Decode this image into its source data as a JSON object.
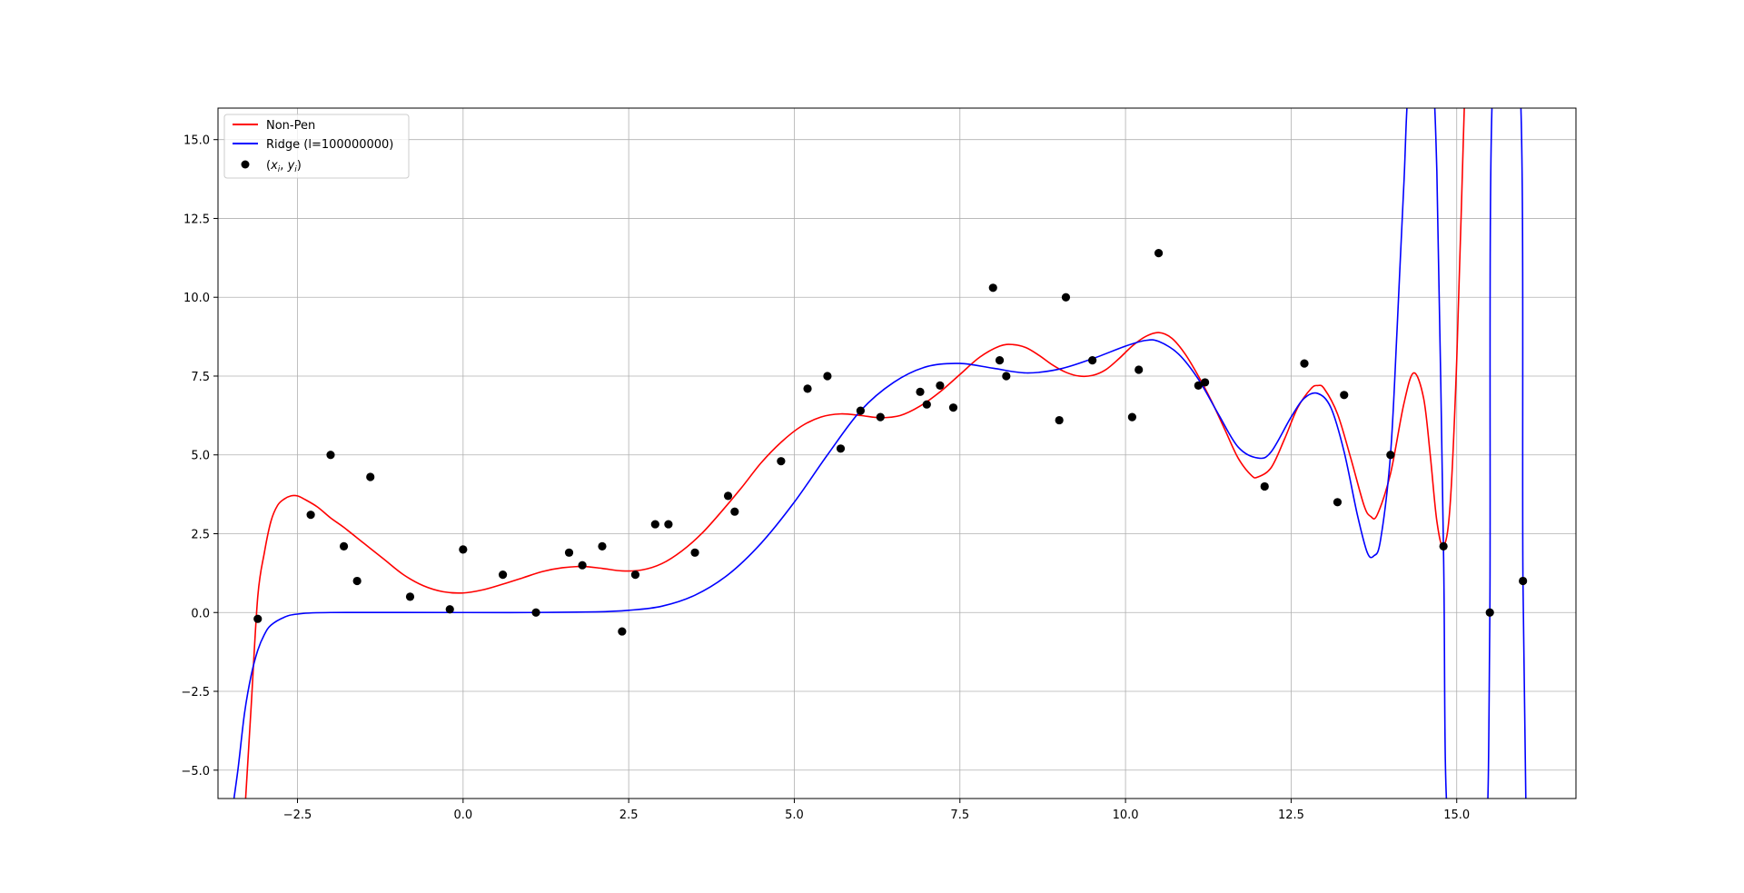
{
  "chart_data": {
    "type": "line",
    "title": "",
    "xlabel": "",
    "ylabel": "",
    "xlim": [
      -3.7,
      16.8
    ],
    "ylim": [
      -5.9,
      16.0
    ],
    "grid": true,
    "legend_position": "upper-left",
    "x_ticks": [
      {
        "value": -2.5,
        "label": "−2.5"
      },
      {
        "value": 0.0,
        "label": "0.0"
      },
      {
        "value": 2.5,
        "label": "2.5"
      },
      {
        "value": 5.0,
        "label": "5.0"
      },
      {
        "value": 7.5,
        "label": "7.5"
      },
      {
        "value": 10.0,
        "label": "10.0"
      },
      {
        "value": 12.5,
        "label": "12.5"
      },
      {
        "value": 15.0,
        "label": "15.0"
      }
    ],
    "y_ticks": [
      {
        "value": -5.0,
        "label": "−5.0"
      },
      {
        "value": -2.5,
        "label": "−2.5"
      },
      {
        "value": 0.0,
        "label": "0.0"
      },
      {
        "value": 2.5,
        "label": "2.5"
      },
      {
        "value": 5.0,
        "label": "5.0"
      },
      {
        "value": 7.5,
        "label": "7.5"
      },
      {
        "value": 10.0,
        "label": "10.0"
      },
      {
        "value": 12.5,
        "label": "12.5"
      },
      {
        "value": 15.0,
        "label": "15.0"
      }
    ],
    "series": [
      {
        "name": "Non-Pen",
        "color": "#ff0000",
        "kind": "line",
        "points": [
          [
            -3.3,
            -6.5
          ],
          [
            -3.2,
            -3.0
          ],
          [
            -3.1,
            0.5
          ],
          [
            -3.0,
            1.9
          ],
          [
            -2.9,
            2.9
          ],
          [
            -2.8,
            3.4
          ],
          [
            -2.7,
            3.6
          ],
          [
            -2.6,
            3.7
          ],
          [
            -2.5,
            3.7
          ],
          [
            -2.4,
            3.6
          ],
          [
            -2.2,
            3.35
          ],
          [
            -2.0,
            3.0
          ],
          [
            -1.8,
            2.7
          ],
          [
            -1.5,
            2.2
          ],
          [
            -1.2,
            1.7
          ],
          [
            -0.9,
            1.2
          ],
          [
            -0.6,
            0.85
          ],
          [
            -0.3,
            0.66
          ],
          [
            0.0,
            0.62
          ],
          [
            0.3,
            0.72
          ],
          [
            0.6,
            0.9
          ],
          [
            0.9,
            1.1
          ],
          [
            1.2,
            1.3
          ],
          [
            1.5,
            1.42
          ],
          [
            1.8,
            1.46
          ],
          [
            2.1,
            1.4
          ],
          [
            2.4,
            1.32
          ],
          [
            2.7,
            1.35
          ],
          [
            3.0,
            1.55
          ],
          [
            3.3,
            1.95
          ],
          [
            3.6,
            2.5
          ],
          [
            3.9,
            3.2
          ],
          [
            4.2,
            3.95
          ],
          [
            4.5,
            4.75
          ],
          [
            4.8,
            5.4
          ],
          [
            5.1,
            5.9
          ],
          [
            5.4,
            6.2
          ],
          [
            5.7,
            6.3
          ],
          [
            6.0,
            6.25
          ],
          [
            6.3,
            6.18
          ],
          [
            6.6,
            6.25
          ],
          [
            6.9,
            6.55
          ],
          [
            7.2,
            7.0
          ],
          [
            7.5,
            7.55
          ],
          [
            7.8,
            8.1
          ],
          [
            8.1,
            8.45
          ],
          [
            8.3,
            8.5
          ],
          [
            8.5,
            8.4
          ],
          [
            8.7,
            8.15
          ],
          [
            8.9,
            7.85
          ],
          [
            9.1,
            7.62
          ],
          [
            9.3,
            7.5
          ],
          [
            9.5,
            7.52
          ],
          [
            9.7,
            7.7
          ],
          [
            9.9,
            8.05
          ],
          [
            10.1,
            8.45
          ],
          [
            10.3,
            8.75
          ],
          [
            10.5,
            8.88
          ],
          [
            10.7,
            8.7
          ],
          [
            10.9,
            8.2
          ],
          [
            11.1,
            7.5
          ],
          [
            11.3,
            6.7
          ],
          [
            11.5,
            5.8
          ],
          [
            11.7,
            4.9
          ],
          [
            11.9,
            4.35
          ],
          [
            12.0,
            4.3
          ],
          [
            12.2,
            4.6
          ],
          [
            12.4,
            5.5
          ],
          [
            12.6,
            6.5
          ],
          [
            12.8,
            7.1
          ],
          [
            12.9,
            7.2
          ],
          [
            13.0,
            7.1
          ],
          [
            13.2,
            6.3
          ],
          [
            13.4,
            4.9
          ],
          [
            13.6,
            3.4
          ],
          [
            13.7,
            3.05
          ],
          [
            13.8,
            3.1
          ],
          [
            14.0,
            4.4
          ],
          [
            14.2,
            6.6
          ],
          [
            14.35,
            7.6
          ],
          [
            14.5,
            6.8
          ],
          [
            14.6,
            5.0
          ],
          [
            14.7,
            2.9
          ],
          [
            14.8,
            2.1
          ],
          [
            14.9,
            3.4
          ],
          [
            15.0,
            8.0
          ],
          [
            15.1,
            15.0
          ],
          [
            15.2,
            22.0
          ]
        ]
      },
      {
        "name": "Ridge (l=100000000)",
        "color": "#0000ff",
        "kind": "line",
        "points": [
          [
            -3.5,
            -6.5
          ],
          [
            -3.4,
            -5.0
          ],
          [
            -3.3,
            -3.2
          ],
          [
            -3.2,
            -2.0
          ],
          [
            -3.1,
            -1.2
          ],
          [
            -3.0,
            -0.7
          ],
          [
            -2.9,
            -0.4
          ],
          [
            -2.7,
            -0.15
          ],
          [
            -2.5,
            -0.05
          ],
          [
            -2.0,
            0.0
          ],
          [
            0.0,
            0.0
          ],
          [
            1.0,
            0.0
          ],
          [
            2.0,
            0.02
          ],
          [
            2.5,
            0.07
          ],
          [
            3.0,
            0.2
          ],
          [
            3.5,
            0.55
          ],
          [
            4.0,
            1.2
          ],
          [
            4.5,
            2.2
          ],
          [
            5.0,
            3.5
          ],
          [
            5.5,
            5.0
          ],
          [
            6.0,
            6.4
          ],
          [
            6.5,
            7.3
          ],
          [
            7.0,
            7.8
          ],
          [
            7.5,
            7.9
          ],
          [
            8.0,
            7.75
          ],
          [
            8.5,
            7.6
          ],
          [
            9.0,
            7.72
          ],
          [
            9.5,
            8.05
          ],
          [
            10.0,
            8.45
          ],
          [
            10.3,
            8.63
          ],
          [
            10.5,
            8.6
          ],
          [
            10.8,
            8.2
          ],
          [
            11.1,
            7.4
          ],
          [
            11.4,
            6.3
          ],
          [
            11.7,
            5.25
          ],
          [
            12.0,
            4.9
          ],
          [
            12.2,
            5.1
          ],
          [
            12.5,
            6.2
          ],
          [
            12.7,
            6.8
          ],
          [
            12.9,
            6.95
          ],
          [
            13.1,
            6.5
          ],
          [
            13.3,
            5.1
          ],
          [
            13.5,
            3.1
          ],
          [
            13.65,
            1.9
          ],
          [
            13.75,
            1.8
          ],
          [
            13.85,
            2.3
          ],
          [
            14.0,
            5.0
          ],
          [
            14.1,
            9.0
          ],
          [
            14.2,
            13.5
          ],
          [
            14.3,
            17.0
          ],
          [
            14.6,
            17.0
          ],
          [
            14.7,
            14.0
          ],
          [
            14.8,
            2.0
          ],
          [
            14.88,
            -7.0
          ],
          [
            15.3,
            -7.0
          ],
          [
            15.45,
            -7.0
          ],
          [
            15.5,
            0.0
          ],
          [
            15.55,
            17.0
          ],
          [
            15.95,
            17.0
          ],
          [
            16.0,
            1.0
          ],
          [
            16.05,
            -7.0
          ]
        ]
      }
    ],
    "scatter": {
      "name": "(x_i, y_i)",
      "color": "#000000",
      "points": [
        [
          -3.1,
          -0.2
        ],
        [
          -2.3,
          3.1
        ],
        [
          -2.0,
          5.0
        ],
        [
          -1.8,
          2.1
        ],
        [
          -1.6,
          1.0
        ],
        [
          -1.4,
          4.3
        ],
        [
          -0.8,
          0.5
        ],
        [
          -0.2,
          0.1
        ],
        [
          0.0,
          2.0
        ],
        [
          0.6,
          1.2
        ],
        [
          1.1,
          0.0
        ],
        [
          1.6,
          1.9
        ],
        [
          1.8,
          1.5
        ],
        [
          2.1,
          2.1
        ],
        [
          2.4,
          -0.6
        ],
        [
          2.6,
          1.2
        ],
        [
          2.9,
          2.8
        ],
        [
          3.1,
          2.8
        ],
        [
          3.5,
          1.9
        ],
        [
          4.0,
          3.7
        ],
        [
          4.1,
          3.2
        ],
        [
          4.8,
          4.8
        ],
        [
          5.2,
          7.1
        ],
        [
          5.5,
          7.5
        ],
        [
          5.7,
          5.2
        ],
        [
          6.0,
          6.4
        ],
        [
          6.3,
          6.2
        ],
        [
          6.9,
          7.0
        ],
        [
          7.0,
          6.6
        ],
        [
          7.2,
          7.2
        ],
        [
          7.4,
          6.5
        ],
        [
          8.0,
          10.3
        ],
        [
          8.1,
          8.0
        ],
        [
          8.2,
          7.5
        ],
        [
          9.0,
          6.1
        ],
        [
          9.1,
          10.0
        ],
        [
          9.5,
          8.0
        ],
        [
          10.1,
          6.2
        ],
        [
          10.2,
          7.7
        ],
        [
          10.5,
          11.4
        ],
        [
          11.1,
          7.2
        ],
        [
          11.2,
          7.3
        ],
        [
          12.1,
          4.0
        ],
        [
          12.7,
          7.9
        ],
        [
          13.2,
          3.5
        ],
        [
          13.3,
          6.9
        ],
        [
          14.0,
          5.0
        ],
        [
          14.8,
          2.1
        ],
        [
          15.5,
          0.0
        ],
        [
          16.0,
          1.0
        ]
      ]
    },
    "legend": {
      "entries": [
        {
          "label": "Non-Pen",
          "color": "#ff0000",
          "marker": "line"
        },
        {
          "label": "Ridge (l=100000000)",
          "color": "#0000ff",
          "marker": "line"
        },
        {
          "label": "(x_i, y_i)",
          "color": "#000000",
          "marker": "dot"
        }
      ]
    }
  }
}
